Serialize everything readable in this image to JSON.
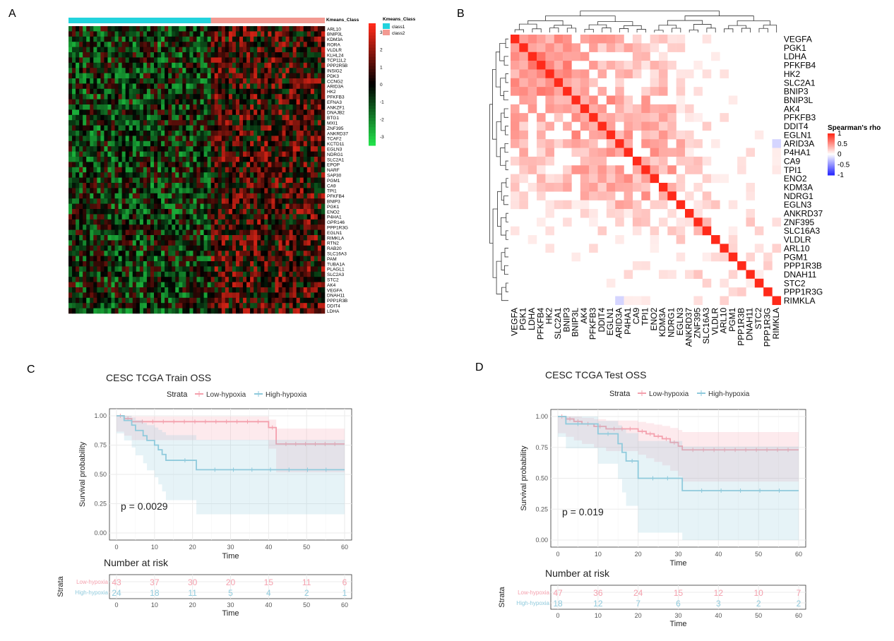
{
  "panels": {
    "a": "A",
    "b": "B",
    "c": "C",
    "d": "D"
  },
  "colors": {
    "class1": "#22d3dd",
    "class2": "#f39a92",
    "heat_low": "#22e04a",
    "heat_mid": "#000000",
    "heat_high": "#ff2a1a",
    "corr_pos": "#ff2a1a",
    "corr_neg": "#2b2bff",
    "low_hypoxia": "#f4a0ad",
    "high_hypoxia": "#8fcadc"
  },
  "chart_data": [
    {
      "type": "heatmap",
      "annotation_title": "Kmeans_Class",
      "legend_title": "Kmeans_Class",
      "classes": [
        "class1",
        "class2"
      ],
      "colorbar_ticks": [
        "3",
        "2",
        "1",
        "0",
        "-1",
        "-2",
        "-3"
      ],
      "colorbar_range": [
        -3.5,
        3.5
      ],
      "genes": [
        "ARL10",
        "BNIP3L",
        "KDM3A",
        "RORA",
        "VLDLR",
        "KLHL24",
        "TCP11L2",
        "PPP2R5B",
        "INSIG2",
        "PDK3",
        "CCNG2",
        "ARID3A",
        "HK2",
        "PFKFB3",
        "EFNA3",
        "ANKZF1",
        "DNAJB2",
        "BTG1",
        "MXI1",
        "ZNF395",
        "ANKRD37",
        "TCAF2",
        "KCTD11",
        "EGLN3",
        "NDRG1",
        "SLC2A1",
        "EPOP",
        "NARF",
        "SAP30",
        "PGM1",
        "CA9",
        "TPI1",
        "PFKFB4",
        "BNIP3",
        "PGK1",
        "ENO2",
        "P4HA1",
        "GPR146",
        "PPP1R3G",
        "EGLN1",
        "RIMKLA",
        "RTN2",
        "RAB20",
        "SLC16A3",
        "PAM",
        "TUBA1A",
        "PLAGL1",
        "SLC2A3",
        "STC2",
        "AK4",
        "VEGFA",
        "DNAH11",
        "PPP1R3B",
        "DDIT4",
        "LDHA"
      ]
    },
    {
      "type": "heatmap",
      "legend_title": "Spearman's rho",
      "legend_ticks": [
        "1",
        "0.5",
        "0",
        "-0.5",
        "-1"
      ],
      "value_range": [
        -1,
        1
      ],
      "genes": [
        "VEGFA",
        "PGK1",
        "LDHA",
        "PFKFB4",
        "HK2",
        "SLC2A1",
        "BNIP3",
        "BNIP3L",
        "AK4",
        "PFKFB3",
        "DDIT4",
        "EGLN1",
        "ARID3A",
        "P4HA1",
        "CA9",
        "TPI1",
        "ENO2",
        "KDM3A",
        "NDRG1",
        "EGLN3",
        "ANKRD37",
        "ZNF395",
        "SLC16A3",
        "VLDLR",
        "ARL10",
        "PGM1",
        "PPP1R3B",
        "DNAH11",
        "STC2",
        "PPP1R3G",
        "RIMKLA"
      ]
    },
    {
      "type": "line",
      "title": "CESC TCGA Train OSS",
      "legend_title": "Strata",
      "xlabel": "Time",
      "ylabel": "Survival probability",
      "xlim": [
        0,
        60
      ],
      "ylim": [
        0,
        1
      ],
      "xticks": [
        "0",
        "10",
        "20",
        "30",
        "40",
        "50",
        "60"
      ],
      "yticks": [
        "0.00",
        "0.25",
        "0.50",
        "0.75",
        "1.00"
      ],
      "pvalue": "p = 0.0029",
      "series": [
        {
          "name": "Low-hypoxia",
          "x": [
            0,
            2,
            4,
            40,
            42,
            60
          ],
          "y": [
            1.0,
            0.976,
            0.95,
            0.9,
            0.76,
            0.76
          ]
        },
        {
          "name": "High-hypoxia",
          "x": [
            0,
            2,
            4,
            5,
            7,
            8,
            10,
            11,
            12,
            13,
            15,
            21,
            60
          ],
          "y": [
            1.0,
            0.96,
            0.92,
            0.875,
            0.83,
            0.79,
            0.75,
            0.71,
            0.67,
            0.62,
            0.62,
            0.54,
            0.54
          ]
        }
      ],
      "risk_table": {
        "title": "Number at risk",
        "ylabel": "Strata",
        "xlabel": "Time",
        "times": [
          "0",
          "10",
          "20",
          "30",
          "40",
          "50",
          "60"
        ],
        "rows": [
          {
            "name": "Low-hypoxia",
            "counts": [
              "43",
              "37",
              "30",
              "20",
              "15",
              "11",
              "6"
            ]
          },
          {
            "name": "High-hypoxia",
            "counts": [
              "24",
              "18",
              "11",
              "5",
              "4",
              "2",
              "1"
            ]
          }
        ]
      }
    },
    {
      "type": "line",
      "title": "CESC TCGA Test OSS",
      "legend_title": "Strata",
      "xlabel": "Time",
      "ylabel": "Survival probability",
      "xlim": [
        0,
        60
      ],
      "ylim": [
        0,
        1
      ],
      "xticks": [
        "0",
        "10",
        "20",
        "30",
        "40",
        "50",
        "60"
      ],
      "yticks": [
        "0.00",
        "0.25",
        "0.50",
        "0.75",
        "1.00"
      ],
      "pvalue": "p = 0.019",
      "series": [
        {
          "name": "Low-hypoxia",
          "x": [
            0,
            2,
            4,
            6,
            9,
            12,
            20,
            22,
            24,
            26,
            28,
            30,
            31,
            60
          ],
          "y": [
            1.0,
            0.98,
            0.96,
            0.94,
            0.92,
            0.9,
            0.88,
            0.86,
            0.84,
            0.82,
            0.79,
            0.76,
            0.73,
            0.73
          ]
        },
        {
          "name": "High-hypoxia",
          "x": [
            0,
            2,
            8,
            10,
            15,
            16,
            17,
            20,
            31,
            60
          ],
          "y": [
            1.0,
            0.94,
            0.94,
            0.86,
            0.78,
            0.71,
            0.64,
            0.5,
            0.4,
            0.4
          ]
        }
      ],
      "risk_table": {
        "title": "Number at risk",
        "ylabel": "Strata",
        "xlabel": "Time",
        "times": [
          "0",
          "10",
          "20",
          "30",
          "40",
          "50",
          "60"
        ],
        "rows": [
          {
            "name": "Low-hypoxia",
            "counts": [
              "47",
              "36",
              "24",
              "15",
              "12",
              "10",
              "7"
            ]
          },
          {
            "name": "High-hypoxia",
            "counts": [
              "18",
              "12",
              "7",
              "6",
              "3",
              "2",
              "2"
            ]
          }
        ]
      }
    }
  ]
}
